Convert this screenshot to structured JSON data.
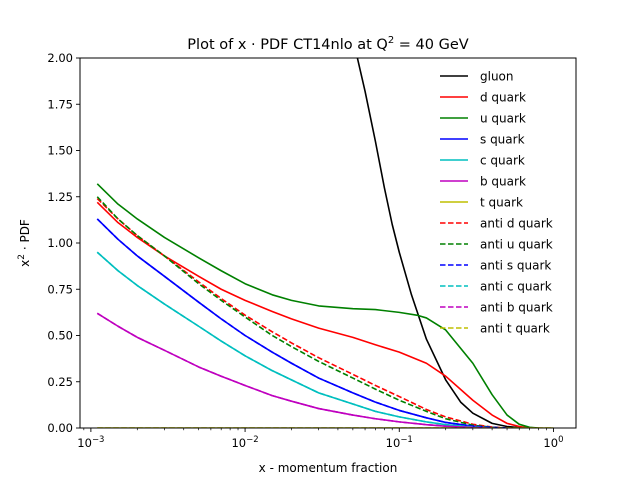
{
  "chart_data": {
    "type": "line",
    "title": "Plot of x · PDF CT14nlo at Q",
    "title_sup": "2",
    "title_suffix": " = 40 GeV",
    "xlabel": "x - momentum fraction",
    "ylabel": "x",
    "ylabel_sup": "2",
    "ylabel_suffix": " · PDF",
    "xscale": "log",
    "xlim": [
      0.00085,
      1.4
    ],
    "ylim": [
      0,
      2.0
    ],
    "xticks": [
      {
        "value": 0.001,
        "base": "10",
        "exp": "−3"
      },
      {
        "value": 0.01,
        "base": "10",
        "exp": "−2"
      },
      {
        "value": 0.1,
        "base": "10",
        "exp": "−1"
      },
      {
        "value": 1,
        "base": "10",
        "exp": "0"
      }
    ],
    "yticks": [
      {
        "value": 0.0,
        "label": "0.00"
      },
      {
        "value": 0.25,
        "label": "0.25"
      },
      {
        "value": 0.5,
        "label": "0.50"
      },
      {
        "value": 0.75,
        "label": "0.75"
      },
      {
        "value": 1.0,
        "label": "1.00"
      },
      {
        "value": 1.25,
        "label": "1.25"
      },
      {
        "value": 1.5,
        "label": "1.50"
      },
      {
        "value": 1.75,
        "label": "1.75"
      },
      {
        "value": 2.0,
        "label": "2.00"
      }
    ],
    "grid": false,
    "legend_position": "top-right",
    "series": [
      {
        "name": "gluon",
        "color": "#000000",
        "dashed": false,
        "x": [
          0.0535,
          0.06,
          0.07,
          0.08,
          0.09,
          0.1,
          0.12,
          0.15,
          0.2,
          0.25,
          0.3,
          0.4,
          0.5,
          0.6,
          0.7
        ],
        "y": [
          2.0,
          1.82,
          1.55,
          1.3,
          1.1,
          0.95,
          0.72,
          0.48,
          0.26,
          0.14,
          0.08,
          0.025,
          0.008,
          0.002,
          0.0
        ]
      },
      {
        "name": "d quark",
        "color": "#ff0000",
        "dashed": false,
        "x": [
          0.0011,
          0.0015,
          0.002,
          0.003,
          0.005,
          0.007,
          0.01,
          0.015,
          0.02,
          0.03,
          0.05,
          0.07,
          0.1,
          0.15,
          0.2,
          0.3,
          0.4,
          0.5,
          0.6,
          0.7
        ],
        "y": [
          1.22,
          1.11,
          1.03,
          0.93,
          0.82,
          0.75,
          0.69,
          0.63,
          0.59,
          0.54,
          0.49,
          0.45,
          0.41,
          0.35,
          0.28,
          0.15,
          0.07,
          0.025,
          0.008,
          0.0
        ]
      },
      {
        "name": "u quark",
        "color": "#008000",
        "dashed": false,
        "x": [
          0.0011,
          0.0015,
          0.002,
          0.003,
          0.005,
          0.007,
          0.01,
          0.015,
          0.02,
          0.03,
          0.05,
          0.07,
          0.1,
          0.13,
          0.15,
          0.2,
          0.3,
          0.4,
          0.5,
          0.6,
          0.7,
          0.8
        ],
        "y": [
          1.32,
          1.21,
          1.13,
          1.03,
          0.92,
          0.85,
          0.78,
          0.72,
          0.69,
          0.66,
          0.645,
          0.64,
          0.625,
          0.61,
          0.595,
          0.53,
          0.35,
          0.18,
          0.07,
          0.02,
          0.004,
          0.0
        ]
      },
      {
        "name": "s quark",
        "color": "#0000ff",
        "dashed": false,
        "x": [
          0.0011,
          0.0015,
          0.002,
          0.003,
          0.005,
          0.007,
          0.01,
          0.015,
          0.02,
          0.03,
          0.05,
          0.07,
          0.1,
          0.15,
          0.2,
          0.3,
          0.4,
          0.5
        ],
        "y": [
          1.13,
          1.02,
          0.93,
          0.82,
          0.68,
          0.59,
          0.5,
          0.41,
          0.35,
          0.27,
          0.19,
          0.14,
          0.095,
          0.055,
          0.03,
          0.01,
          0.003,
          0.0
        ]
      },
      {
        "name": "c quark",
        "color": "#00bfbf",
        "dashed": false,
        "x": [
          0.0011,
          0.0015,
          0.002,
          0.003,
          0.005,
          0.007,
          0.01,
          0.015,
          0.02,
          0.03,
          0.05,
          0.07,
          0.1,
          0.15,
          0.2,
          0.3,
          0.4
        ],
        "y": [
          0.95,
          0.85,
          0.77,
          0.67,
          0.55,
          0.47,
          0.39,
          0.31,
          0.26,
          0.19,
          0.13,
          0.09,
          0.06,
          0.033,
          0.018,
          0.005,
          0.0
        ]
      },
      {
        "name": "b quark",
        "color": "#bf00bf",
        "dashed": false,
        "x": [
          0.0011,
          0.0015,
          0.002,
          0.003,
          0.005,
          0.007,
          0.01,
          0.015,
          0.02,
          0.03,
          0.05,
          0.07,
          0.1,
          0.15,
          0.2,
          0.3,
          0.4
        ],
        "y": [
          0.62,
          0.55,
          0.49,
          0.42,
          0.33,
          0.28,
          0.23,
          0.175,
          0.145,
          0.105,
          0.07,
          0.05,
          0.033,
          0.018,
          0.01,
          0.003,
          0.0
        ]
      },
      {
        "name": "t quark",
        "color": "#bfbf00",
        "dashed": false,
        "x": [
          0.0011,
          1.0
        ],
        "y": [
          0.0,
          0.0
        ]
      },
      {
        "name": "anti d quark",
        "color": "#ff0000",
        "dashed": true,
        "x": [
          0.0011,
          0.0015,
          0.002,
          0.003,
          0.005,
          0.007,
          0.01,
          0.015,
          0.02,
          0.03,
          0.05,
          0.07,
          0.1,
          0.15,
          0.2,
          0.3,
          0.4,
          0.5
        ],
        "y": [
          1.24,
          1.13,
          1.04,
          0.93,
          0.79,
          0.7,
          0.61,
          0.52,
          0.46,
          0.38,
          0.29,
          0.23,
          0.17,
          0.1,
          0.06,
          0.02,
          0.005,
          0.0
        ]
      },
      {
        "name": "anti u quark",
        "color": "#008000",
        "dashed": true,
        "x": [
          0.0011,
          0.0015,
          0.002,
          0.003,
          0.005,
          0.007,
          0.01,
          0.015,
          0.02,
          0.03,
          0.05,
          0.07,
          0.1,
          0.15,
          0.2,
          0.3,
          0.4,
          0.5
        ],
        "y": [
          1.25,
          1.13,
          1.04,
          0.93,
          0.78,
          0.69,
          0.6,
          0.5,
          0.44,
          0.36,
          0.27,
          0.21,
          0.15,
          0.09,
          0.05,
          0.015,
          0.004,
          0.0
        ]
      },
      {
        "name": "anti s quark",
        "color": "#0000ff",
        "dashed": true,
        "x": [
          0.0011,
          0.0015,
          0.002,
          0.003,
          0.005,
          0.007,
          0.01,
          0.015,
          0.02,
          0.03,
          0.05,
          0.07,
          0.1,
          0.15,
          0.2,
          0.3,
          0.4,
          0.5
        ],
        "y": [
          1.13,
          1.02,
          0.93,
          0.82,
          0.68,
          0.59,
          0.5,
          0.41,
          0.35,
          0.27,
          0.19,
          0.14,
          0.095,
          0.055,
          0.03,
          0.01,
          0.003,
          0.0
        ]
      },
      {
        "name": "anti c quark",
        "color": "#00bfbf",
        "dashed": true,
        "x": [
          0.0011,
          0.0015,
          0.002,
          0.003,
          0.005,
          0.007,
          0.01,
          0.015,
          0.02,
          0.03,
          0.05,
          0.07,
          0.1,
          0.15,
          0.2,
          0.3,
          0.4
        ],
        "y": [
          0.95,
          0.85,
          0.77,
          0.67,
          0.55,
          0.47,
          0.39,
          0.31,
          0.26,
          0.19,
          0.13,
          0.09,
          0.06,
          0.033,
          0.018,
          0.005,
          0.0
        ]
      },
      {
        "name": "anti b quark",
        "color": "#bf00bf",
        "dashed": true,
        "x": [
          0.0011,
          0.0015,
          0.002,
          0.003,
          0.005,
          0.007,
          0.01,
          0.015,
          0.02,
          0.03,
          0.05,
          0.07,
          0.1,
          0.15,
          0.2,
          0.3,
          0.4
        ],
        "y": [
          0.62,
          0.55,
          0.49,
          0.42,
          0.33,
          0.28,
          0.23,
          0.175,
          0.145,
          0.105,
          0.07,
          0.05,
          0.033,
          0.018,
          0.01,
          0.003,
          0.0
        ]
      },
      {
        "name": "anti t quark",
        "color": "#bfbf00",
        "dashed": true,
        "x": [
          0.0011,
          1.0
        ],
        "y": [
          0.0,
          0.0
        ]
      }
    ]
  }
}
